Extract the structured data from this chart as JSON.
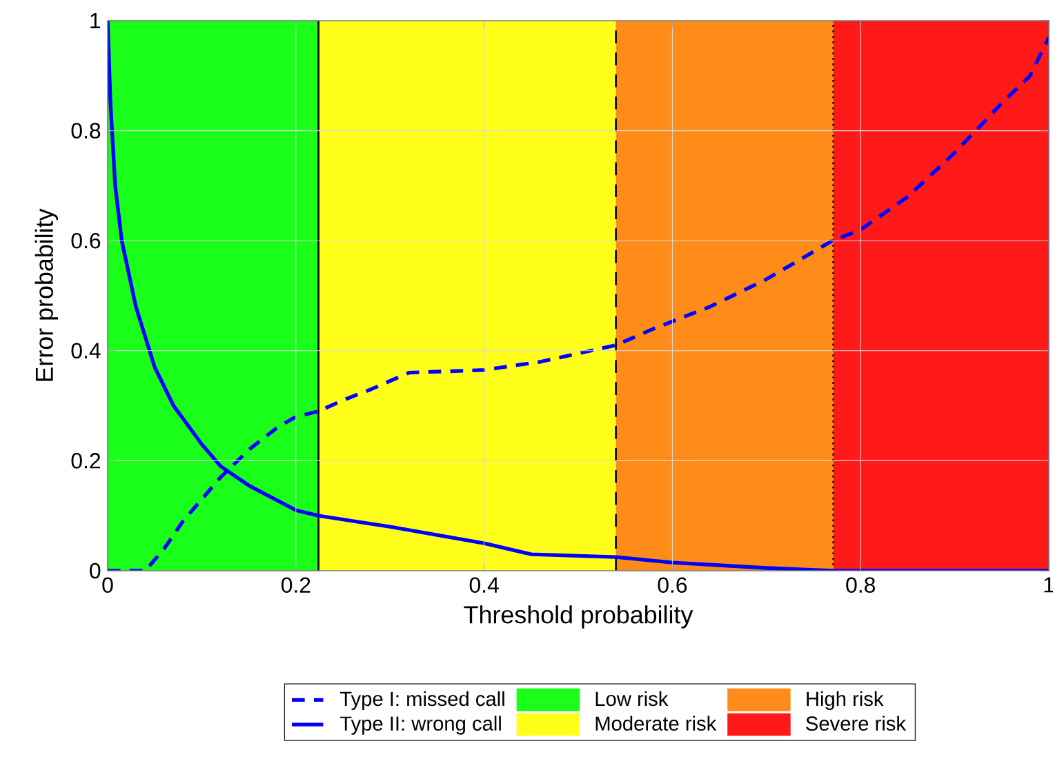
{
  "chart_data": {
    "type": "line",
    "xlabel": "Threshold probability",
    "ylabel": "Error probability",
    "xlim": [
      0,
      1
    ],
    "ylim": [
      0,
      1
    ],
    "xticks": [
      0,
      0.2,
      0.4,
      0.6,
      0.8,
      1
    ],
    "yticks": [
      0,
      0.2,
      0.4,
      0.6,
      0.8,
      1
    ],
    "grid": true,
    "legend": "bottom",
    "series": [
      {
        "name": "Type I: missed call",
        "color": "#0000ff",
        "line_style": "dashed",
        "x": [
          0,
          0.04,
          0.06,
          0.08,
          0.1,
          0.12,
          0.15,
          0.18,
          0.2,
          0.224,
          0.25,
          0.28,
          0.32,
          0.4,
          0.46,
          0.54,
          0.58,
          0.64,
          0.7,
          0.77,
          0.8,
          0.85,
          0.9,
          0.95,
          0.98,
          1
        ],
        "values": [
          0,
          0,
          0.04,
          0.09,
          0.13,
          0.17,
          0.22,
          0.26,
          0.28,
          0.29,
          0.31,
          0.33,
          0.36,
          0.365,
          0.38,
          0.41,
          0.44,
          0.48,
          0.53,
          0.6,
          0.62,
          0.68,
          0.76,
          0.85,
          0.9,
          0.97
        ]
      },
      {
        "name": "Type II: wrong call",
        "color": "#0000ff",
        "line_style": "solid",
        "x": [
          0,
          0.003,
          0.008,
          0.015,
          0.03,
          0.05,
          0.07,
          0.1,
          0.12,
          0.15,
          0.2,
          0.224,
          0.3,
          0.4,
          0.45,
          0.54,
          0.6,
          0.7,
          0.77,
          1
        ],
        "values": [
          1,
          0.85,
          0.7,
          0.6,
          0.48,
          0.37,
          0.3,
          0.23,
          0.19,
          0.155,
          0.11,
          0.1,
          0.08,
          0.05,
          0.03,
          0.025,
          0.015,
          0.005,
          0,
          0
        ]
      }
    ],
    "bands": [
      {
        "axis": "x",
        "from": 0,
        "to": 0.224,
        "label": "Low risk",
        "color": "#19ff19"
      },
      {
        "axis": "x",
        "from": 0.224,
        "to": 0.54,
        "label": "Moderate risk",
        "color": "#ffff19"
      },
      {
        "axis": "x",
        "from": 0.54,
        "to": 0.771,
        "label": "High risk",
        "color": "#ff8c19"
      },
      {
        "axis": "x",
        "from": 0.771,
        "to": 1,
        "label": "Severe risk",
        "color": "#ff1919"
      }
    ],
    "ref_lines": [
      {
        "axis": "x",
        "value": 0.224,
        "color": "#000000",
        "line_style": "solid"
      },
      {
        "axis": "x",
        "value": 0.54,
        "color": "#000000",
        "line_style": "dashed"
      },
      {
        "axis": "x",
        "value": 0.771,
        "color": "#000000",
        "line_style": "dotted"
      }
    ]
  }
}
